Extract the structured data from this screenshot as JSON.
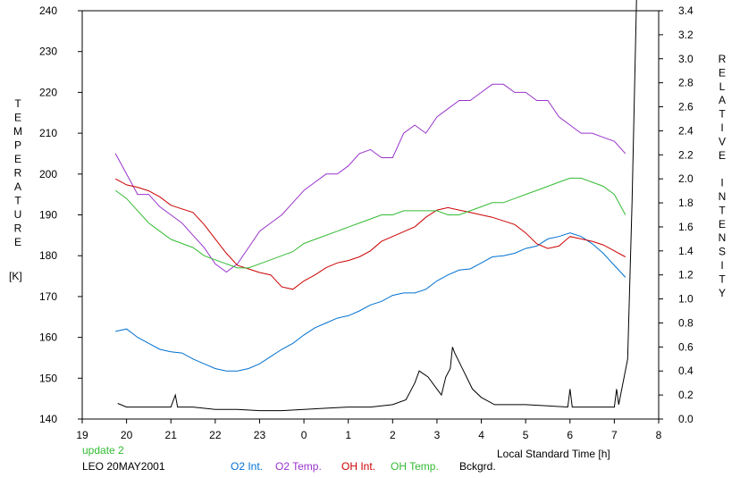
{
  "chart_data": {
    "type": "line",
    "xlabel": "Local Standard Time [h]",
    "x_tick_labels": [
      "19",
      "20",
      "21",
      "22",
      "23",
      "0",
      "1",
      "2",
      "3",
      "4",
      "5",
      "6",
      "7",
      "8"
    ],
    "x_range": [
      19,
      32
    ],
    "ylabel_left": "TEMPERATURE",
    "ylabel_left_unit": "[K]",
    "ylim_left": [
      140,
      240
    ],
    "y_ticks_left": [
      140,
      150,
      160,
      170,
      180,
      190,
      200,
      210,
      220,
      230,
      240
    ],
    "ylabel_right": "RELATIVE INTENSITY",
    "ylim_right": [
      0.0,
      3.4
    ],
    "y_ticks_right": [
      "0.0",
      "0.2",
      "0.4",
      "0.6",
      "0.8",
      "1.0",
      "1.2",
      "1.4",
      "1.6",
      "1.8",
      "2.0",
      "2.2",
      "2.4",
      "2.6",
      "2.8",
      "3.0",
      "3.2",
      "3.4"
    ],
    "annotation_update": "update 2",
    "annotation_station": "LEO 20MAY2001",
    "legend_position": "bottom",
    "series": [
      {
        "name": "O2 Int.",
        "color": "#0070d0",
        "axis": "right",
        "x": [
          19.75,
          20.0,
          20.25,
          20.5,
          20.75,
          21.0,
          21.25,
          21.5,
          21.75,
          22.0,
          22.25,
          22.5,
          22.75,
          23.0,
          23.25,
          23.5,
          23.75,
          24.0,
          24.25,
          24.5,
          24.75,
          25.0,
          25.25,
          25.5,
          25.75,
          26.0,
          26.25,
          26.5,
          26.75,
          27.0,
          27.25,
          27.5,
          27.75,
          28.0,
          28.25,
          28.5,
          28.75,
          29.0,
          29.25,
          29.5,
          29.75,
          30.0,
          30.25,
          30.5,
          30.75,
          31.0,
          31.25
        ],
        "y": [
          0.73,
          0.75,
          0.68,
          0.63,
          0.58,
          0.56,
          0.55,
          0.5,
          0.46,
          0.42,
          0.4,
          0.4,
          0.42,
          0.46,
          0.52,
          0.58,
          0.63,
          0.7,
          0.76,
          0.8,
          0.84,
          0.86,
          0.9,
          0.95,
          0.98,
          1.03,
          1.05,
          1.05,
          1.08,
          1.15,
          1.2,
          1.24,
          1.25,
          1.3,
          1.35,
          1.36,
          1.38,
          1.42,
          1.44,
          1.5,
          1.52,
          1.55,
          1.52,
          1.46,
          1.38,
          1.28,
          1.18
        ]
      },
      {
        "name": "O2 Temp.",
        "color": "#9933cc",
        "axis": "left",
        "x": [
          19.75,
          20.0,
          20.25,
          20.5,
          20.75,
          21.0,
          21.25,
          21.5,
          21.75,
          22.0,
          22.25,
          22.5,
          22.75,
          23.0,
          23.25,
          23.5,
          23.75,
          24.0,
          24.25,
          24.5,
          24.75,
          25.0,
          25.25,
          25.5,
          25.75,
          26.0,
          26.25,
          26.5,
          26.75,
          27.0,
          27.25,
          27.5,
          27.75,
          28.0,
          28.25,
          28.5,
          28.75,
          29.0,
          29.25,
          29.5,
          29.75,
          30.0,
          30.25,
          30.5,
          30.75,
          31.0,
          31.25
        ],
        "y": [
          205,
          200,
          195,
          195,
          192,
          190,
          188,
          185,
          182,
          178,
          176,
          178,
          182,
          186,
          188,
          190,
          193,
          196,
          198,
          200,
          200,
          202,
          205,
          206,
          204,
          204,
          210,
          212,
          210,
          214,
          216,
          218,
          218,
          220,
          222,
          222,
          220,
          220,
          218,
          218,
          214,
          212,
          210,
          210,
          209,
          208,
          205
        ]
      },
      {
        "name": "OH Int.",
        "color": "#cc0000",
        "axis": "right",
        "x": [
          19.75,
          20.0,
          20.25,
          20.5,
          20.75,
          21.0,
          21.25,
          21.5,
          21.75,
          22.0,
          22.25,
          22.5,
          22.75,
          23.0,
          23.25,
          23.5,
          23.75,
          24.0,
          24.25,
          24.5,
          24.75,
          25.0,
          25.25,
          25.5,
          25.75,
          26.0,
          26.25,
          26.5,
          26.75,
          27.0,
          27.25,
          27.5,
          27.75,
          28.0,
          28.25,
          28.5,
          28.75,
          29.0,
          29.25,
          29.5,
          29.75,
          30.0,
          30.25,
          30.5,
          30.75,
          31.0,
          31.25
        ],
        "y": [
          2.0,
          1.95,
          1.93,
          1.9,
          1.85,
          1.78,
          1.75,
          1.72,
          1.62,
          1.5,
          1.38,
          1.28,
          1.25,
          1.22,
          1.2,
          1.1,
          1.08,
          1.15,
          1.2,
          1.26,
          1.3,
          1.32,
          1.35,
          1.4,
          1.48,
          1.52,
          1.56,
          1.6,
          1.68,
          1.74,
          1.76,
          1.74,
          1.72,
          1.7,
          1.68,
          1.65,
          1.62,
          1.55,
          1.46,
          1.42,
          1.44,
          1.52,
          1.5,
          1.48,
          1.45,
          1.4,
          1.35
        ]
      },
      {
        "name": "OH Temp.",
        "color": "#33bb33",
        "axis": "left",
        "x": [
          19.75,
          20.0,
          20.25,
          20.5,
          20.75,
          21.0,
          21.25,
          21.5,
          21.75,
          22.0,
          22.25,
          22.5,
          22.75,
          23.0,
          23.25,
          23.5,
          23.75,
          24.0,
          24.25,
          24.5,
          24.75,
          25.0,
          25.25,
          25.5,
          25.75,
          26.0,
          26.25,
          26.5,
          26.75,
          27.0,
          27.25,
          27.5,
          27.75,
          28.0,
          28.25,
          28.5,
          28.75,
          29.0,
          29.25,
          29.5,
          29.75,
          30.0,
          30.25,
          30.5,
          30.75,
          31.0,
          31.25
        ],
        "y": [
          196,
          194,
          191,
          188,
          186,
          184,
          183,
          182,
          180,
          179,
          178,
          177,
          177,
          178,
          179,
          180,
          181,
          183,
          184,
          185,
          186,
          187,
          188,
          189,
          190,
          190,
          191,
          191,
          191,
          191,
          190,
          190,
          191,
          192,
          193,
          193,
          194,
          195,
          196,
          197,
          198,
          199,
          199,
          198,
          197,
          195,
          190
        ]
      },
      {
        "name": "Bckgrd.",
        "color": "#000000",
        "axis": "right",
        "x": [
          19.8,
          20.0,
          20.5,
          21.0,
          21.1,
          21.15,
          21.2,
          21.5,
          22.0,
          22.5,
          23.0,
          23.5,
          24.0,
          24.5,
          25.0,
          25.5,
          26.0,
          26.3,
          26.5,
          26.6,
          26.8,
          27.0,
          27.1,
          27.2,
          27.3,
          27.35,
          27.4,
          27.6,
          27.8,
          28.0,
          28.3,
          28.6,
          29.0,
          29.5,
          29.95,
          30.0,
          30.05,
          30.5,
          31.0,
          31.05,
          31.1,
          31.3,
          31.4,
          31.5
        ],
        "y": [
          0.13,
          0.1,
          0.1,
          0.1,
          0.2,
          0.1,
          0.1,
          0.1,
          0.08,
          0.08,
          0.07,
          0.07,
          0.08,
          0.09,
          0.1,
          0.1,
          0.12,
          0.16,
          0.3,
          0.4,
          0.35,
          0.25,
          0.2,
          0.35,
          0.42,
          0.6,
          0.55,
          0.4,
          0.25,
          0.18,
          0.12,
          0.12,
          0.12,
          0.11,
          0.1,
          0.25,
          0.1,
          0.1,
          0.1,
          0.25,
          0.12,
          0.5,
          1.8,
          3.6
        ]
      }
    ]
  }
}
